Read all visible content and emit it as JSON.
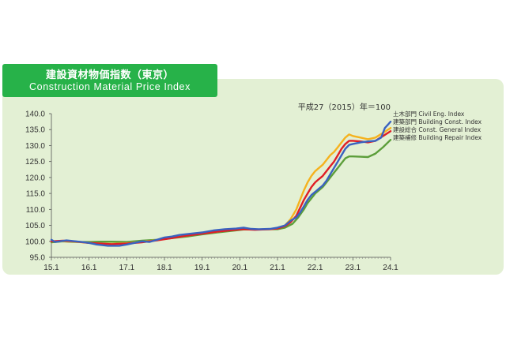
{
  "header": {
    "title_jp": "建設資材物価指数（東京）",
    "title_en": "Construction Material Price Index"
  },
  "colors": {
    "title_bg": "#27b249",
    "panel_bg": "#e3f0d4",
    "civil": "#3a62c0",
    "building": "#e01e25",
    "general": "#f5b21e",
    "repair": "#5c9e3a"
  },
  "chart_data": {
    "type": "line",
    "base_note": "平成27（2015）年＝100",
    "x_tick_labels": [
      "15.1",
      "16.1",
      "17.1",
      "18.1",
      "19.1",
      "20.1",
      "21.1",
      "22.1",
      "23.1",
      "24.1"
    ],
    "x_range": [
      2015.0,
      2024.0
    ],
    "y_tick_labels": [
      "95.0",
      "100.0",
      "105.0",
      "110.0",
      "115.0",
      "120.0",
      "125.0",
      "130.0",
      "135.0",
      "140.0"
    ],
    "y_range": [
      95,
      140
    ],
    "grid": false,
    "legend_position": "right",
    "series": [
      {
        "name": "土木部門 Civil Eng. Index",
        "color": "#3a62c0",
        "points": [
          [
            2015.0,
            100.5
          ],
          [
            2015.1,
            99.8
          ],
          [
            2015.4,
            100.3
          ],
          [
            2015.8,
            99.8
          ],
          [
            2016.0,
            99.5
          ],
          [
            2016.2,
            99.0
          ],
          [
            2016.5,
            98.6
          ],
          [
            2016.8,
            98.6
          ],
          [
            2017.0,
            99.0
          ],
          [
            2017.2,
            99.5
          ],
          [
            2017.4,
            100.0
          ],
          [
            2017.6,
            99.8
          ],
          [
            2017.8,
            100.5
          ],
          [
            2018.0,
            101.2
          ],
          [
            2018.2,
            101.5
          ],
          [
            2018.4,
            102.0
          ],
          [
            2018.7,
            102.4
          ],
          [
            2019.0,
            102.8
          ],
          [
            2019.3,
            103.4
          ],
          [
            2019.6,
            103.8
          ],
          [
            2019.9,
            104.0
          ],
          [
            2020.1,
            104.3
          ],
          [
            2020.3,
            103.9
          ],
          [
            2020.5,
            103.8
          ],
          [
            2020.8,
            103.9
          ],
          [
            2021.0,
            104.3
          ],
          [
            2021.2,
            105.0
          ],
          [
            2021.35,
            106.5
          ],
          [
            2021.5,
            107.5
          ],
          [
            2021.6,
            109.0
          ],
          [
            2021.7,
            111.0
          ],
          [
            2021.8,
            113.0
          ],
          [
            2021.9,
            114.5
          ],
          [
            2022.0,
            115.5
          ],
          [
            2022.1,
            116.5
          ],
          [
            2022.2,
            117.5
          ],
          [
            2022.3,
            119.0
          ],
          [
            2022.4,
            121.0
          ],
          [
            2022.5,
            123.0
          ],
          [
            2022.6,
            125.0
          ],
          [
            2022.7,
            127.0
          ],
          [
            2022.8,
            129.0
          ],
          [
            2022.9,
            130.2
          ],
          [
            2023.0,
            130.5
          ],
          [
            2023.2,
            131.0
          ],
          [
            2023.4,
            131.3
          ],
          [
            2023.6,
            131.5
          ],
          [
            2023.75,
            132.5
          ],
          [
            2023.85,
            135.5
          ],
          [
            2023.95,
            136.8
          ],
          [
            2024.0,
            137.5
          ]
        ]
      },
      {
        "name": "建築部門 Building Const. Index",
        "color": "#e01e25",
        "points": [
          [
            2015.0,
            100.0
          ],
          [
            2015.3,
            100.2
          ],
          [
            2015.6,
            100.0
          ],
          [
            2016.0,
            99.5
          ],
          [
            2016.3,
            99.3
          ],
          [
            2016.6,
            99.1
          ],
          [
            2017.0,
            99.3
          ],
          [
            2017.4,
            99.7
          ],
          [
            2017.8,
            100.3
          ],
          [
            2018.2,
            101.0
          ],
          [
            2018.6,
            101.8
          ],
          [
            2019.0,
            102.4
          ],
          [
            2019.4,
            103.0
          ],
          [
            2019.8,
            103.5
          ],
          [
            2020.1,
            103.8
          ],
          [
            2020.4,
            103.6
          ],
          [
            2020.8,
            103.8
          ],
          [
            2021.0,
            104.0
          ],
          [
            2021.2,
            104.8
          ],
          [
            2021.35,
            106.0
          ],
          [
            2021.5,
            108.0
          ],
          [
            2021.6,
            110.5
          ],
          [
            2021.7,
            113.0
          ],
          [
            2021.8,
            115.0
          ],
          [
            2021.9,
            117.0
          ],
          [
            2022.0,
            118.5
          ],
          [
            2022.1,
            119.5
          ],
          [
            2022.2,
            120.5
          ],
          [
            2022.3,
            122.0
          ],
          [
            2022.4,
            123.5
          ],
          [
            2022.5,
            125.0
          ],
          [
            2022.6,
            127.0
          ],
          [
            2022.7,
            129.0
          ],
          [
            2022.8,
            130.5
          ],
          [
            2022.9,
            131.5
          ],
          [
            2023.0,
            131.5
          ],
          [
            2023.2,
            131.3
          ],
          [
            2023.4,
            131.0
          ],
          [
            2023.6,
            131.5
          ],
          [
            2023.8,
            133.0
          ],
          [
            2024.0,
            134.5
          ]
        ]
      },
      {
        "name": "建設総合 Const. General Index",
        "color": "#f5b21e",
        "points": [
          [
            2015.0,
            100.0
          ],
          [
            2015.3,
            100.1
          ],
          [
            2015.6,
            99.9
          ],
          [
            2016.0,
            99.5
          ],
          [
            2016.3,
            99.3
          ],
          [
            2016.6,
            99.2
          ],
          [
            2017.0,
            99.4
          ],
          [
            2017.4,
            99.8
          ],
          [
            2017.8,
            100.4
          ],
          [
            2018.2,
            101.1
          ],
          [
            2018.6,
            101.8
          ],
          [
            2019.0,
            102.5
          ],
          [
            2019.4,
            103.0
          ],
          [
            2019.8,
            103.6
          ],
          [
            2020.1,
            103.9
          ],
          [
            2020.4,
            103.7
          ],
          [
            2020.8,
            103.8
          ],
          [
            2021.0,
            104.1
          ],
          [
            2021.2,
            105.0
          ],
          [
            2021.35,
            107.0
          ],
          [
            2021.5,
            110.0
          ],
          [
            2021.6,
            113.0
          ],
          [
            2021.7,
            116.0
          ],
          [
            2021.8,
            118.5
          ],
          [
            2021.9,
            120.5
          ],
          [
            2022.0,
            122.0
          ],
          [
            2022.1,
            123.0
          ],
          [
            2022.2,
            124.0
          ],
          [
            2022.3,
            125.5
          ],
          [
            2022.4,
            127.0
          ],
          [
            2022.5,
            128.0
          ],
          [
            2022.6,
            129.5
          ],
          [
            2022.7,
            131.0
          ],
          [
            2022.8,
            132.5
          ],
          [
            2022.9,
            133.5
          ],
          [
            2023.0,
            133.0
          ],
          [
            2023.2,
            132.5
          ],
          [
            2023.4,
            132.0
          ],
          [
            2023.6,
            132.5
          ],
          [
            2023.8,
            134.0
          ],
          [
            2024.0,
            135.5
          ]
        ]
      },
      {
        "name": "建築補修 Building Repair Index",
        "color": "#5c9e3a",
        "points": [
          [
            2015.0,
            99.7
          ],
          [
            2015.3,
            100.0
          ],
          [
            2015.6,
            99.8
          ],
          [
            2016.0,
            99.8
          ],
          [
            2016.3,
            99.9
          ],
          [
            2016.6,
            99.9
          ],
          [
            2017.0,
            99.8
          ],
          [
            2017.4,
            100.2
          ],
          [
            2017.8,
            100.5
          ],
          [
            2018.2,
            101.0
          ],
          [
            2018.6,
            101.5
          ],
          [
            2019.0,
            102.2
          ],
          [
            2019.4,
            102.8
          ],
          [
            2019.8,
            103.3
          ],
          [
            2020.1,
            103.7
          ],
          [
            2020.4,
            103.7
          ],
          [
            2020.8,
            103.8
          ],
          [
            2021.0,
            103.8
          ],
          [
            2021.2,
            104.3
          ],
          [
            2021.4,
            105.5
          ],
          [
            2021.55,
            107.5
          ],
          [
            2021.7,
            110.0
          ],
          [
            2021.8,
            112.0
          ],
          [
            2021.9,
            113.5
          ],
          [
            2022.0,
            115.0
          ],
          [
            2022.1,
            116.0
          ],
          [
            2022.2,
            117.0
          ],
          [
            2022.3,
            118.5
          ],
          [
            2022.4,
            120.0
          ],
          [
            2022.5,
            121.5
          ],
          [
            2022.6,
            123.0
          ],
          [
            2022.7,
            124.5
          ],
          [
            2022.8,
            126.0
          ],
          [
            2022.9,
            126.6
          ],
          [
            2023.0,
            126.6
          ],
          [
            2023.2,
            126.5
          ],
          [
            2023.4,
            126.4
          ],
          [
            2023.6,
            127.5
          ],
          [
            2023.8,
            129.5
          ],
          [
            2024.0,
            131.8
          ]
        ]
      }
    ]
  }
}
